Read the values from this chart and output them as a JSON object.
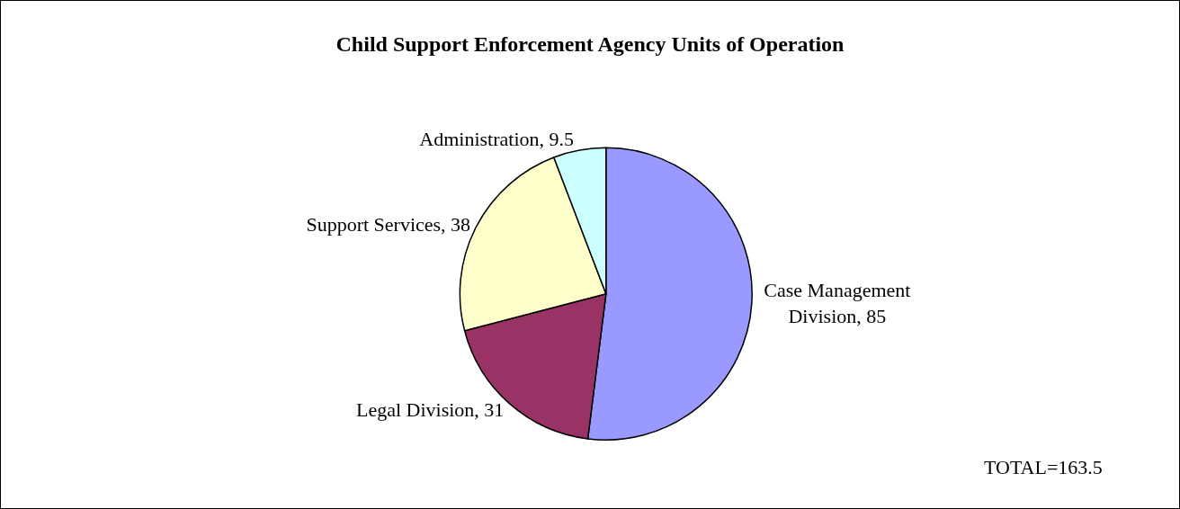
{
  "chart_data": {
    "type": "pie",
    "title": "Child Support Enforcement Agency Units of Operation",
    "categories": [
      "Case Management Division",
      "Legal Division",
      "Support Services",
      "Administration"
    ],
    "values": [
      85,
      31,
      38,
      9.5
    ],
    "colors": [
      "#9999ff",
      "#993366",
      "#ffffcc",
      "#ccffff"
    ],
    "value_labels": [
      ", 85",
      ", 31",
      ", 38",
      ", 9.5"
    ],
    "legend": false,
    "annotations": [
      "TOTAL=163.5"
    ]
  }
}
